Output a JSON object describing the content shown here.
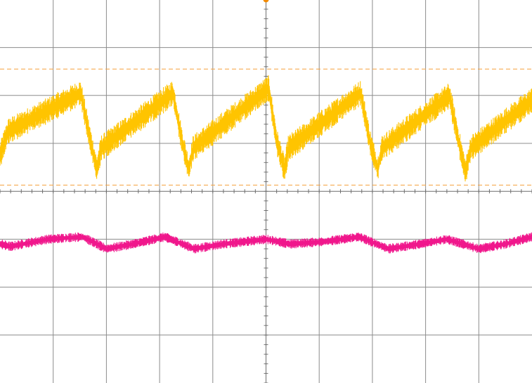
{
  "chart_data": {
    "type": "line",
    "title": "",
    "xlabel": "",
    "ylabel": "",
    "grid": true,
    "grid_divisions": {
      "x": 10,
      "y": 8
    },
    "minor_ticks_per_division": 5,
    "xlim": [
      0,
      10
    ],
    "ylim": [
      0,
      8
    ],
    "colors": {
      "background": "#ffffff",
      "grid": "#8c8c8c",
      "center_axis": "#6e6e6e",
      "trace_yellow": "#ffc400",
      "trace_pink": "#f0178c",
      "cursor": "#f5a03c",
      "trigger_marker": "#f28a00"
    },
    "cursors": [
      {
        "name": "",
        "y": 6.55,
        "style": "dashed"
      },
      {
        "name": "",
        "y": 4.13,
        "style": "dashed"
      }
    ],
    "trigger_marker": {
      "x": 5.0,
      "y": 8.0
    },
    "series": [
      {
        "name": "",
        "kind": "sawtooth",
        "color": "#ffc400",
        "noise_band": 0.55,
        "points": [
          [
            0.0,
            4.75
          ],
          [
            0.15,
            5.25
          ],
          [
            1.52,
            6.05
          ],
          [
            1.7,
            5.05
          ],
          [
            1.82,
            4.45
          ],
          [
            1.9,
            4.9
          ],
          [
            3.25,
            6.05
          ],
          [
            3.42,
            5.05
          ],
          [
            3.55,
            4.45
          ],
          [
            3.63,
            4.9
          ],
          [
            5.05,
            6.15
          ],
          [
            5.2,
            5.05
          ],
          [
            5.35,
            4.45
          ],
          [
            5.42,
            4.9
          ],
          [
            6.78,
            6.05
          ],
          [
            6.95,
            5.05
          ],
          [
            7.1,
            4.45
          ],
          [
            7.18,
            4.9
          ],
          [
            8.45,
            6.0
          ],
          [
            8.62,
            5.05
          ],
          [
            8.75,
            4.4
          ],
          [
            8.85,
            4.9
          ],
          [
            10.0,
            5.9
          ]
        ]
      },
      {
        "name": "",
        "kind": "wave",
        "color": "#f0178c",
        "noise_band": 0.2,
        "points": [
          [
            0.0,
            2.9
          ],
          [
            0.2,
            2.85
          ],
          [
            0.9,
            3.0
          ],
          [
            1.55,
            3.05
          ],
          [
            2.0,
            2.8
          ],
          [
            2.5,
            2.9
          ],
          [
            3.1,
            3.05
          ],
          [
            3.65,
            2.8
          ],
          [
            4.2,
            2.9
          ],
          [
            5.0,
            3.0
          ],
          [
            5.45,
            2.9
          ],
          [
            6.1,
            2.95
          ],
          [
            6.75,
            3.05
          ],
          [
            7.3,
            2.8
          ],
          [
            7.9,
            2.9
          ],
          [
            8.4,
            3.0
          ],
          [
            9.0,
            2.8
          ],
          [
            9.5,
            2.9
          ],
          [
            10.0,
            3.05
          ]
        ]
      }
    ]
  }
}
